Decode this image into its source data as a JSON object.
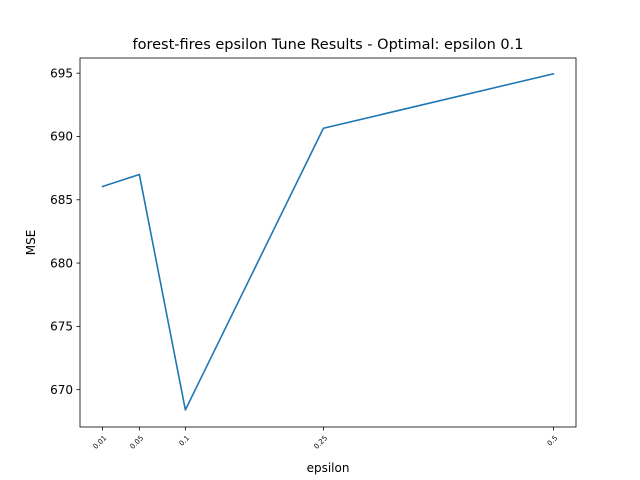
{
  "chart_data": {
    "type": "line",
    "title": "forest-fires epsilon Tune Results - Optimal: epsilon 0.1",
    "xlabel": "epsilon",
    "ylabel": "MSE",
    "x": [
      0.01,
      0.05,
      0.1,
      0.25,
      0.5
    ],
    "x_tick_labels": [
      "0.01",
      "0.05",
      "0.1",
      "0.25",
      "0.5"
    ],
    "y_ticks": [
      670,
      675,
      680,
      685,
      690,
      695
    ],
    "y_tick_labels": [
      "670",
      "675",
      "680",
      "685",
      "690",
      "695"
    ],
    "ylim": [
      667.05,
      696.2
    ],
    "xlim": [
      -0.0145,
      0.5245
    ],
    "grid": false,
    "series": [
      {
        "color": "#1f77b4",
        "values": [
          686.05,
          687.0,
          668.4,
          690.65,
          694.95
        ]
      }
    ]
  }
}
